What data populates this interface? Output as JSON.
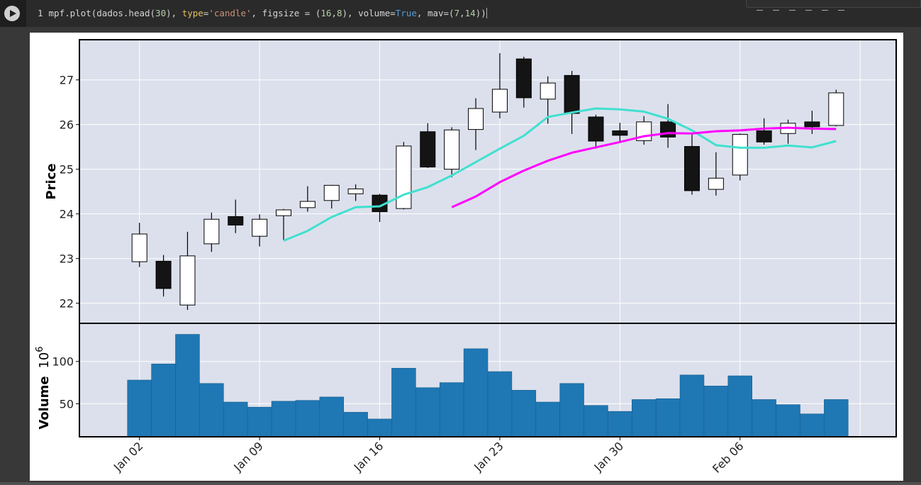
{
  "code": {
    "line_number": "1",
    "segments": [
      {
        "t": "mpf.plot(dados.head(",
        "c": ""
      },
      {
        "t": "30",
        "c": "n"
      },
      {
        "t": "), ",
        "c": ""
      },
      {
        "t": "type",
        "c": "p"
      },
      {
        "t": "=",
        "c": ""
      },
      {
        "t": "'candle'",
        "c": "s"
      },
      {
        "t": ", figsize = (",
        "c": ""
      },
      {
        "t": "16",
        "c": "n"
      },
      {
        "t": ",",
        "c": ""
      },
      {
        "t": "8",
        "c": "n"
      },
      {
        "t": "), volume=",
        "c": ""
      },
      {
        "t": "True",
        "c": "k"
      },
      {
        "t": ", mav=(",
        "c": ""
      },
      {
        "t": "7",
        "c": "n"
      },
      {
        "t": ",",
        "c": ""
      },
      {
        "t": "14",
        "c": "n"
      },
      {
        "t": "))",
        "c": ""
      }
    ]
  },
  "chart_data": {
    "type": "candlestick",
    "library": "mplfinance",
    "price_ylabel": "Price",
    "volume_ylabel": "Volume",
    "volume_scale_label": "10",
    "volume_scale_exponent": "6",
    "price_ylim": [
      21.55,
      27.9
    ],
    "volume_ylim": [
      11,
      145
    ],
    "price_ticks": [
      22,
      23,
      24,
      25,
      26,
      27
    ],
    "volume_ticks": [
      50,
      100
    ],
    "x_ticks": [
      {
        "index": 0,
        "label": "Jan 02"
      },
      {
        "index": 5,
        "label": "Jan 09"
      },
      {
        "index": 10,
        "label": "Jan 16"
      },
      {
        "index": 15,
        "label": "Jan 23"
      },
      {
        "index": 20,
        "label": "Jan 30"
      },
      {
        "index": 25,
        "label": "Feb 06"
      }
    ],
    "x_range": [
      -2.5,
      31.5
    ],
    "grid": true,
    "colors": {
      "up_body": "#ffffff",
      "down_body": "#141414",
      "volume": "#1f77b4",
      "axes_bg": "#dce0ec",
      "grid": "#ffffff",
      "mav7": "#40e0d0",
      "mav14": "#ff00ff"
    },
    "candles": [
      {
        "o": 22.93,
        "h": 23.8,
        "l": 22.81,
        "c": 23.55
      },
      {
        "o": 22.94,
        "h": 23.08,
        "l": 22.15,
        "c": 22.33
      },
      {
        "o": 21.96,
        "h": 23.6,
        "l": 21.85,
        "c": 23.06
      },
      {
        "o": 23.33,
        "h": 24.03,
        "l": 23.15,
        "c": 23.88
      },
      {
        "o": 23.94,
        "h": 24.32,
        "l": 23.57,
        "c": 23.75
      },
      {
        "o": 23.5,
        "h": 23.99,
        "l": 23.27,
        "c": 23.88
      },
      {
        "o": 23.96,
        "h": 24.11,
        "l": 23.41,
        "c": 24.09
      },
      {
        "o": 24.14,
        "h": 24.62,
        "l": 24.05,
        "c": 24.28
      },
      {
        "o": 24.3,
        "h": 24.65,
        "l": 24.12,
        "c": 24.64
      },
      {
        "o": 24.45,
        "h": 24.66,
        "l": 24.29,
        "c": 24.56
      },
      {
        "o": 24.42,
        "h": 24.45,
        "l": 23.82,
        "c": 24.05
      },
      {
        "o": 24.12,
        "h": 25.61,
        "l": 24.1,
        "c": 25.52
      },
      {
        "o": 25.84,
        "h": 26.03,
        "l": 25.03,
        "c": 25.05
      },
      {
        "o": 25.0,
        "h": 25.94,
        "l": 24.82,
        "c": 25.88
      },
      {
        "o": 25.89,
        "h": 26.59,
        "l": 25.43,
        "c": 26.36
      },
      {
        "o": 26.28,
        "h": 27.6,
        "l": 26.14,
        "c": 26.79
      },
      {
        "o": 27.47,
        "h": 27.52,
        "l": 26.38,
        "c": 26.6
      },
      {
        "o": 26.57,
        "h": 27.08,
        "l": 26.02,
        "c": 26.93
      },
      {
        "o": 27.1,
        "h": 27.2,
        "l": 25.79,
        "c": 26.25
      },
      {
        "o": 26.17,
        "h": 26.22,
        "l": 25.46,
        "c": 25.63
      },
      {
        "o": 25.86,
        "h": 26.04,
        "l": 25.6,
        "c": 25.76
      },
      {
        "o": 25.64,
        "h": 26.19,
        "l": 25.55,
        "c": 26.06
      },
      {
        "o": 26.06,
        "h": 26.46,
        "l": 25.48,
        "c": 25.72
      },
      {
        "o": 25.51,
        "h": 25.8,
        "l": 24.43,
        "c": 24.52
      },
      {
        "o": 24.55,
        "h": 25.38,
        "l": 24.41,
        "c": 24.8
      },
      {
        "o": 24.87,
        "h": 25.8,
        "l": 24.75,
        "c": 25.78
      },
      {
        "o": 25.86,
        "h": 26.14,
        "l": 25.55,
        "c": 25.61
      },
      {
        "o": 25.8,
        "h": 26.11,
        "l": 25.57,
        "c": 26.03
      },
      {
        "o": 26.06,
        "h": 26.31,
        "l": 25.79,
        "c": 25.95
      },
      {
        "o": 25.98,
        "h": 26.78,
        "l": 25.96,
        "c": 26.71
      }
    ],
    "volumes": [
      78,
      97,
      132,
      74,
      52,
      46,
      53,
      54,
      58,
      40,
      32,
      92,
      69,
      75,
      115,
      88,
      66,
      52,
      74,
      48,
      41,
      55,
      56,
      84,
      71,
      83,
      55,
      49,
      38,
      55
    ],
    "mav7": [
      {
        "i": 6,
        "v": 23.4
      },
      {
        "i": 7,
        "v": 23.62
      },
      {
        "i": 8,
        "v": 23.93
      },
      {
        "i": 9,
        "v": 24.15
      },
      {
        "i": 10,
        "v": 24.17
      },
      {
        "i": 11,
        "v": 24.43
      },
      {
        "i": 12,
        "v": 24.6
      },
      {
        "i": 13,
        "v": 24.86
      },
      {
        "i": 14,
        "v": 25.16
      },
      {
        "i": 15,
        "v": 25.46
      },
      {
        "i": 16,
        "v": 25.75
      },
      {
        "i": 17,
        "v": 26.17
      },
      {
        "i": 18,
        "v": 26.27
      },
      {
        "i": 19,
        "v": 26.36
      },
      {
        "i": 20,
        "v": 26.34
      },
      {
        "i": 21,
        "v": 26.29
      },
      {
        "i": 22,
        "v": 26.13
      },
      {
        "i": 23,
        "v": 25.87
      },
      {
        "i": 24,
        "v": 25.54
      },
      {
        "i": 25,
        "v": 25.48
      },
      {
        "i": 26,
        "v": 25.48
      },
      {
        "i": 27,
        "v": 25.53
      },
      {
        "i": 28,
        "v": 25.49
      },
      {
        "i": 29,
        "v": 25.63
      }
    ],
    "mav14": [
      {
        "i": 13,
        "v": 24.15
      },
      {
        "i": 14,
        "v": 24.39
      },
      {
        "i": 15,
        "v": 24.71
      },
      {
        "i": 16,
        "v": 24.97
      },
      {
        "i": 17,
        "v": 25.19
      },
      {
        "i": 18,
        "v": 25.37
      },
      {
        "i": 19,
        "v": 25.49
      },
      {
        "i": 20,
        "v": 25.61
      },
      {
        "i": 21,
        "v": 25.74
      },
      {
        "i": 22,
        "v": 25.81
      },
      {
        "i": 23,
        "v": 25.8
      },
      {
        "i": 24,
        "v": 25.85
      },
      {
        "i": 25,
        "v": 25.87
      },
      {
        "i": 26,
        "v": 25.91
      },
      {
        "i": 27,
        "v": 25.93
      },
      {
        "i": 28,
        "v": 25.91
      },
      {
        "i": 29,
        "v": 25.9
      }
    ]
  }
}
